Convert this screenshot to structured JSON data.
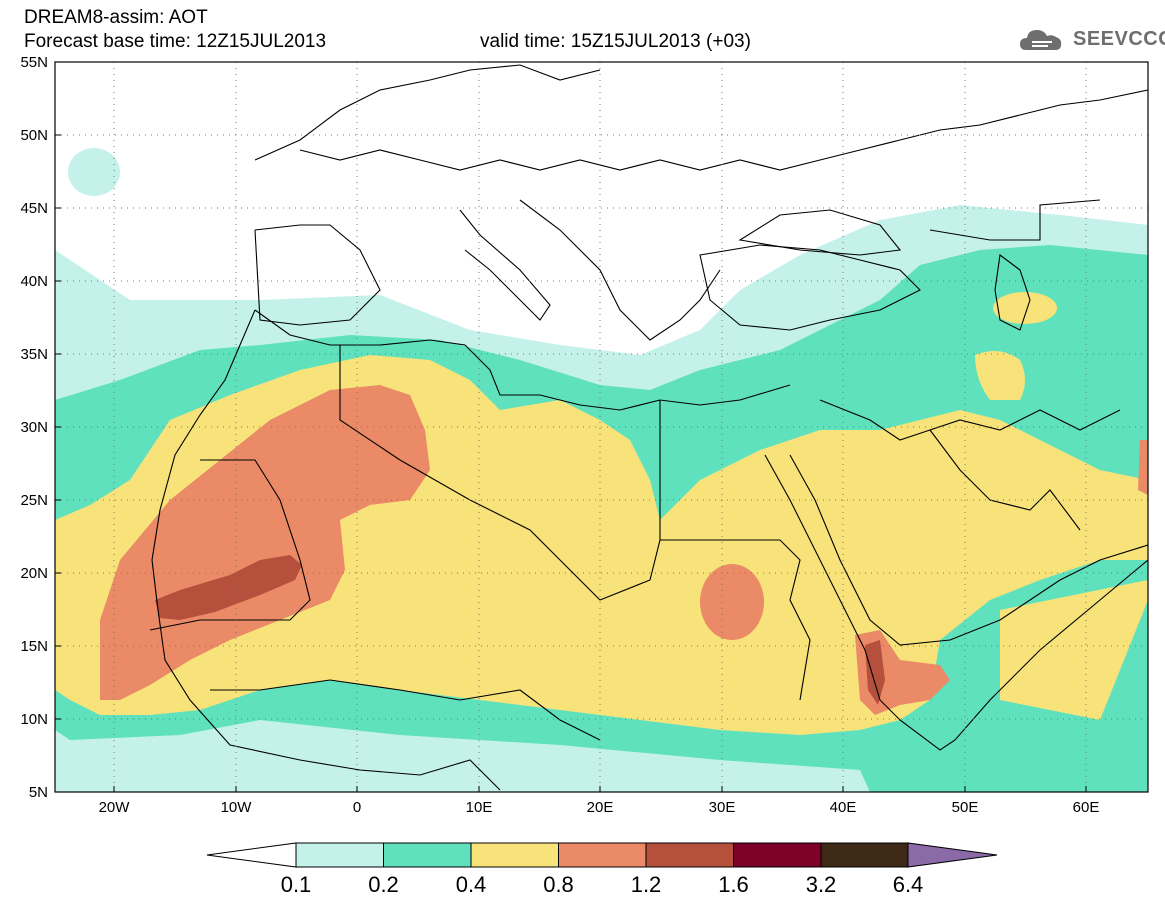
{
  "header": {
    "line1": "DREAM8-assim: AOT",
    "line2": "Forecast base time: 12Z15JUL2013",
    "line3": "valid time: 15Z15JUL2013 (+03)"
  },
  "logo": {
    "text": "SEEVCCC",
    "icon": "cloud-icon"
  },
  "map": {
    "lon_range": [
      -25,
      65
    ],
    "lat_range": [
      5,
      55
    ],
    "lon_ticks": [
      "20W",
      "10W",
      "0",
      "10E",
      "20E",
      "30E",
      "40E",
      "50E",
      "60E"
    ],
    "lat_ticks": [
      "5N",
      "10N",
      "15N",
      "20N",
      "25N",
      "30N",
      "35N",
      "40N",
      "45N",
      "50N",
      "55N"
    ],
    "grid": "dotted"
  },
  "colorbar": {
    "labels": [
      "0.1",
      "0.2",
      "0.4",
      "0.8",
      "1.2",
      "1.6",
      "3.2",
      "6.4"
    ],
    "colors": [
      "#ffffff",
      "#c4f1ea",
      "#5fe1bd",
      "#f7e37a",
      "#ea8a66",
      "#b4503c",
      "#7d0028",
      "#3e2816",
      "#8b6aa8"
    ]
  }
}
